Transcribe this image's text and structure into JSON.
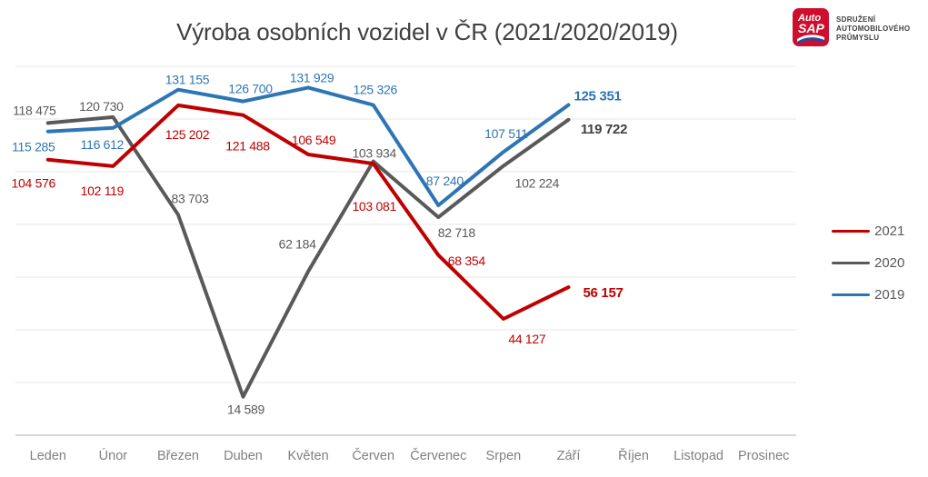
{
  "title": "Výroba osobních vozidel v ČR (2021/2020/2019)",
  "logo": {
    "word1": "Auto",
    "word2": "SAP",
    "org_line1": "SDRUŽENÍ",
    "org_line2": "AUTOMOBILOVÉHO",
    "org_line3": "PRŮMYSLU",
    "red_color": "#CE0E2D",
    "blue_color": "#1F4E9C"
  },
  "colors": {
    "grid": "#ECECEC",
    "axis": "#BFBFBF",
    "month_label": "#7F7F7F",
    "title": "#404040"
  },
  "legend": {
    "items": [
      {
        "label": "2021",
        "color": "#C00000"
      },
      {
        "label": "2020",
        "color": "#595959"
      },
      {
        "label": "2019",
        "color": "#2E75B6"
      }
    ]
  },
  "chart_data": {
    "type": "line",
    "title": "Výroba osobních vozidel v ČR (2021/2020/2019)",
    "categories": [
      "Leden",
      "Únor",
      "Březen",
      "Duben",
      "Květen",
      "Červen",
      "Červenec",
      "Srpen",
      "Září",
      "Říjen",
      "Listopad",
      "Prosinec"
    ],
    "ylim": [
      0,
      140000
    ],
    "grid_step": 20000,
    "grid": true,
    "legend_position": "right",
    "series": [
      {
        "name": "2021",
        "color": "#C00000",
        "label_color": "#C00000",
        "final_label_color": "#C00000",
        "values": [
          104576,
          102119,
          125202,
          121488,
          106549,
          103081,
          68354,
          44127,
          56157,
          null,
          null,
          null
        ],
        "labels": [
          {
            "text": "104 576",
            "dx": -16,
            "dy": 26
          },
          {
            "text": "102 119",
            "dx": -12,
            "dy": 27
          },
          {
            "text": "125 202",
            "dx": 10,
            "dy": 32
          },
          {
            "text": "121 488",
            "dx": 5,
            "dy": 34
          },
          {
            "text": "106 549",
            "dx": 6,
            "dy": -16
          },
          {
            "text": "103 081",
            "dx": 1,
            "dy": 47
          },
          {
            "text": "68 354",
            "dx": 31,
            "dy": 6
          },
          {
            "text": "44 127",
            "dx": 26,
            "dy": 22
          },
          {
            "text": "56 157",
            "dx": 38,
            "dy": 6,
            "bold": true
          }
        ]
      },
      {
        "name": "2020",
        "color": "#595959",
        "label_color": "#595959",
        "final_label_color": "#404040",
        "values": [
          118475,
          120730,
          83703,
          14589,
          62184,
          103934,
          82718,
          102224,
          119722,
          null,
          null,
          null
        ],
        "labels": [
          {
            "text": "118 475",
            "dx": -15,
            "dy": -14
          },
          {
            "text": "120 730",
            "dx": -13,
            "dy": -12
          },
          {
            "text": "83 703",
            "dx": 13,
            "dy": -18
          },
          {
            "text": "14 589",
            "dx": 3,
            "dy": 14
          },
          {
            "text": "62 184",
            "dx": -12,
            "dy": -30
          },
          {
            "text": "103 934",
            "dx": 1,
            "dy": -9
          },
          {
            "text": "82 718",
            "dx": 20,
            "dy": 17
          },
          {
            "text": "102 224",
            "dx": 37,
            "dy": 19
          },
          {
            "text": "119 722",
            "dx": 39,
            "dy": 10,
            "bold": true
          }
        ]
      },
      {
        "name": "2019",
        "color": "#2E75B6",
        "label_color": "#2E75B6",
        "final_label_color": "#2E75B6",
        "values": [
          115285,
          116612,
          131155,
          126700,
          131929,
          125326,
          87240,
          107511,
          125351,
          null,
          null,
          null
        ],
        "labels": [
          {
            "text": "115 285",
            "dx": -16,
            "dy": 17
          },
          {
            "text": "116 612",
            "dx": -12,
            "dy": 18
          },
          {
            "text": "131 155",
            "dx": 10,
            "dy": -11
          },
          {
            "text": "126 700",
            "dx": 8,
            "dy": -14
          },
          {
            "text": "131 929",
            "dx": 4,
            "dy": -11
          },
          {
            "text": "125 326",
            "dx": 2,
            "dy": -17
          },
          {
            "text": "87 240",
            "dx": 7,
            "dy": -27
          },
          {
            "text": "107 511",
            "dx": 3,
            "dy": -20
          },
          {
            "text": "125 351",
            "dx": 32,
            "dy": -10,
            "bold": true
          }
        ]
      }
    ]
  }
}
